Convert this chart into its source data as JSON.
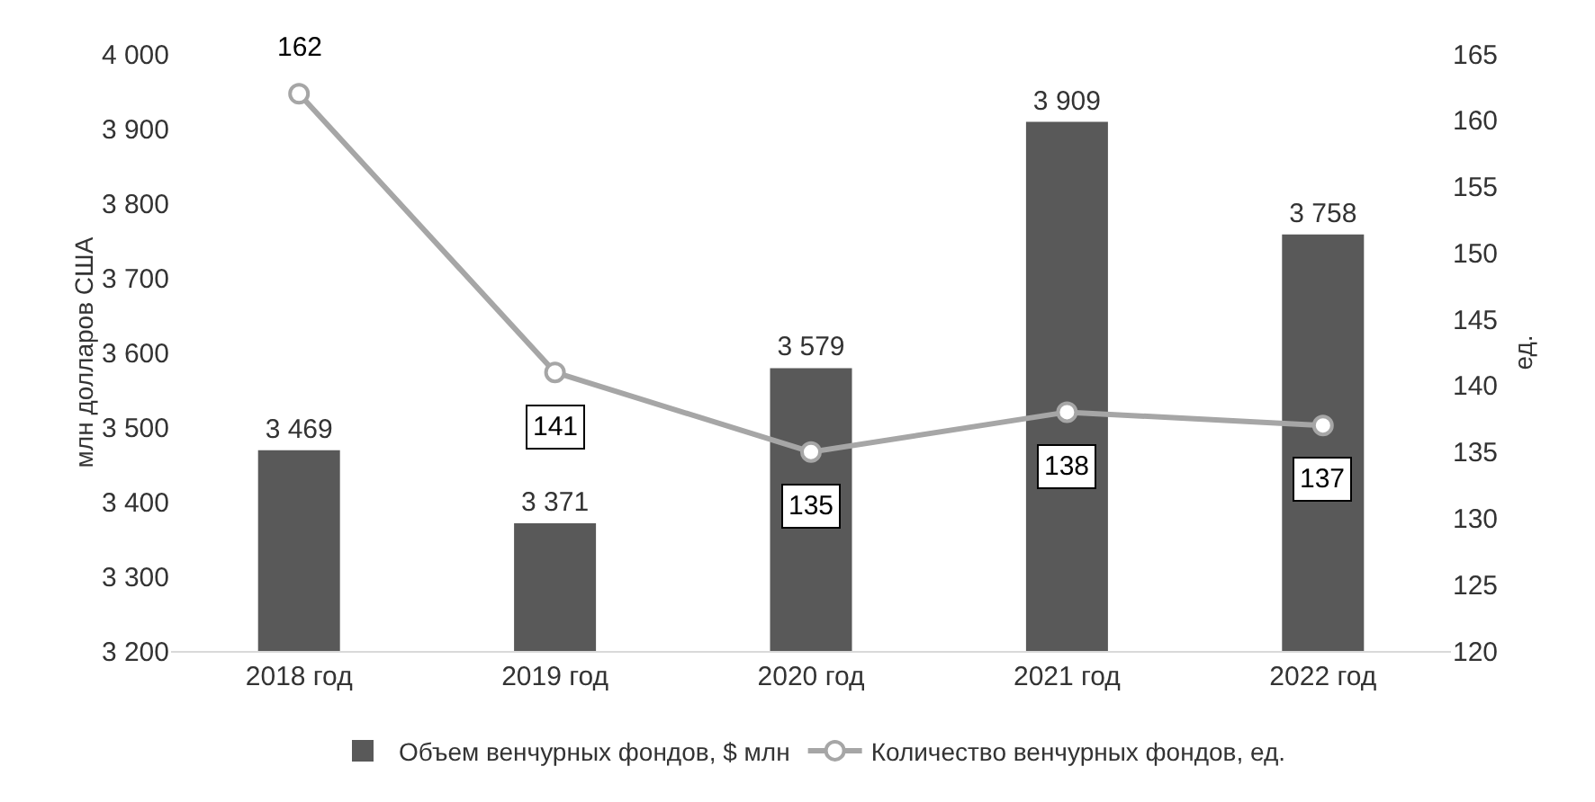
{
  "chart_data": {
    "type": "bar",
    "ylabel": "млн долларов США",
    "y2label": "ед.",
    "categories": [
      "2018 год",
      "2019 год",
      "2020 год",
      "2021 год",
      "2022 год"
    ],
    "series": [
      {
        "name": "Объем венчурных фондов, $ млн",
        "color": "#595959",
        "values": [
          3469,
          3371,
          3579,
          3909,
          3758
        ],
        "value_labels": [
          "3 469",
          "3 371",
          "3 579",
          "3 909",
          "3 758"
        ]
      },
      {
        "name": "Количество венчурных фондов, ед.",
        "type": "line",
        "axis": "y2",
        "color": "#a6a6a6",
        "marker": "circle",
        "line_style": "solid",
        "values": [
          162,
          141,
          135,
          138,
          137
        ],
        "value_labels": [
          "162",
          "141",
          "135",
          "138",
          "137"
        ]
      }
    ],
    "ylim": [
      3200,
      4000
    ],
    "yticks": [
      {
        "value": 3200,
        "label": "3 200"
      },
      {
        "value": 3300,
        "label": "3 300"
      },
      {
        "value": 3400,
        "label": "3 400"
      },
      {
        "value": 3500,
        "label": "3 500"
      },
      {
        "value": 3600,
        "label": "3 600"
      },
      {
        "value": 3700,
        "label": "3 700"
      },
      {
        "value": 3800,
        "label": "3 800"
      },
      {
        "value": 3900,
        "label": "3 900"
      },
      {
        "value": 4000,
        "label": "4 000"
      }
    ],
    "y2lim": [
      120,
      165
    ],
    "y2ticks": [
      120,
      125,
      130,
      135,
      140,
      145,
      150,
      155,
      160,
      165
    ],
    "grid": false,
    "legend": "bottom"
  }
}
